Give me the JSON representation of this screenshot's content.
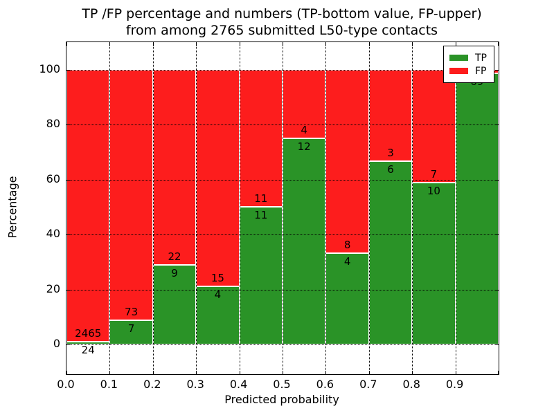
{
  "title": {
    "line1": "TP /FP percentage and numbers (TP-bottom value, FP-upper)",
    "line2": "from among 2765 submitted L50-type contacts"
  },
  "axes": {
    "xlabel": "Predicted probability",
    "ylabel": "Percentage",
    "x_tick_labels": [
      "0.0",
      "0.1",
      "0.2",
      "0.3",
      "0.4",
      "0.5",
      "0.6",
      "0.7",
      "0.8",
      "0.9"
    ],
    "y_tick_labels": [
      "0",
      "20",
      "40",
      "60",
      "80",
      "100"
    ],
    "y_tick_values": [
      0,
      20,
      40,
      60,
      80,
      100
    ],
    "xlim": [
      0.0,
      1.0
    ],
    "ylim": [
      -10.8,
      110.0
    ],
    "grid_style": "dotted"
  },
  "legend": {
    "position": "upper-right",
    "entries": [
      {
        "label": "TP",
        "color": "#2a9327"
      },
      {
        "label": "FP",
        "color": "#fd1d1d"
      }
    ]
  },
  "colors": {
    "tp": "#2a9327",
    "fp": "#fd1d1d",
    "background": "#ffffff",
    "bar_edge": "#ffffff",
    "grid": "#000000",
    "text": "#000000"
  },
  "chart_data": {
    "type": "bar",
    "stacked": true,
    "normalized_to_percent": true,
    "title": "TP /FP percentage and numbers (TP-bottom value, FP-upper) from among 2765 submitted L50-type contacts",
    "xlabel": "Predicted probability",
    "ylabel": "Percentage",
    "total_contacts": 2765,
    "bin_width": 0.1,
    "ylim": [
      -10.8,
      110.0
    ],
    "grid": true,
    "legend_position": "upper-right",
    "series": [
      {
        "name": "TP",
        "color": "#2a9327",
        "position": "bottom"
      },
      {
        "name": "FP",
        "color": "#fd1d1d",
        "position": "top"
      }
    ],
    "bins": [
      {
        "range": "0.0-0.1",
        "tp_count": 24,
        "fp_count": 2465,
        "tp_percent": 1.0
      },
      {
        "range": "0.1-0.2",
        "tp_count": 7,
        "fp_count": 73,
        "tp_percent": 8.8
      },
      {
        "range": "0.2-0.3",
        "tp_count": 9,
        "fp_count": 22,
        "tp_percent": 29.0
      },
      {
        "range": "0.3-0.4",
        "tp_count": 4,
        "fp_count": 15,
        "tp_percent": 21.1
      },
      {
        "range": "0.4-0.5",
        "tp_count": 11,
        "fp_count": 11,
        "tp_percent": 50.0
      },
      {
        "range": "0.5-0.6",
        "tp_count": 12,
        "fp_count": 4,
        "tp_percent": 75.0
      },
      {
        "range": "0.6-0.7",
        "tp_count": 4,
        "fp_count": 8,
        "tp_percent": 33.3
      },
      {
        "range": "0.7-0.8",
        "tp_count": 6,
        "fp_count": 3,
        "tp_percent": 66.7
      },
      {
        "range": "0.8-0.9",
        "tp_count": 10,
        "fp_count": 7,
        "tp_percent": 58.8
      },
      {
        "range": "0.9-1.0",
        "tp_count": 69,
        "fp_count": null,
        "fp_label_hidden_by_legend": true,
        "tp_percent": 98.6
      }
    ]
  }
}
